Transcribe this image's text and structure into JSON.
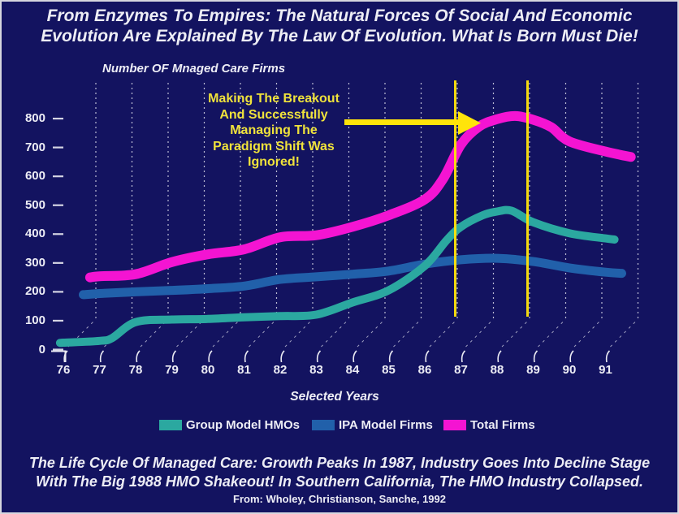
{
  "title": {
    "line1": "From Enzymes To Empires: The Natural Forces Of Social And Economic",
    "line2": "Evolution Are Explained By The Law Of Evolution. What Is Born Must Die!"
  },
  "chart": {
    "axis_title": "Number OF Mnaged Care Firms",
    "x_axis_label": "Selected Years",
    "annotation": {
      "lines": [
        "Making The Breakout",
        "And Successfully",
        "Managing The",
        "Paradigm Shift Was",
        "Ignored!"
      ]
    }
  },
  "chart_data": {
    "type": "line",
    "title": "Number OF Mnaged Care Firms",
    "xlabel": "Selected Years",
    "ylabel": "Number OF Mnaged Care Firms",
    "x_tick_labels": [
      "76",
      "77",
      "78",
      "79",
      "80",
      "81",
      "82",
      "83",
      "84",
      "85",
      "86",
      "87",
      "88",
      "89",
      "90",
      "91"
    ],
    "x_tick_years": [
      76,
      77,
      78,
      79,
      80,
      81,
      82,
      83,
      84,
      85,
      86,
      87,
      88,
      89,
      90,
      91
    ],
    "y_ticks": [
      800,
      700,
      600,
      500,
      400,
      300,
      200,
      100,
      0
    ],
    "ylim": [
      0,
      870
    ],
    "grid": "dotted-vertical-skewed",
    "legend_position": "bottom",
    "highlight_years": [
      87,
      89
    ],
    "series": [
      {
        "name": "IPA Model Firms",
        "color": "#2160aa",
        "stroke_width": 11,
        "points": [
          [
            76.55,
            190
          ],
          [
            77,
            194
          ],
          [
            78,
            200
          ],
          [
            79,
            205
          ],
          [
            80,
            211
          ],
          [
            81,
            220
          ],
          [
            82,
            243
          ],
          [
            83,
            252
          ],
          [
            84,
            261
          ],
          [
            85,
            272
          ],
          [
            86,
            296
          ],
          [
            87,
            311
          ],
          [
            88,
            316
          ],
          [
            89,
            305
          ],
          [
            90,
            283
          ],
          [
            91,
            268
          ],
          [
            91.45,
            264
          ]
        ]
      },
      {
        "name": "Group Model HMOs",
        "color": "#2ba8a0",
        "stroke_width": 10,
        "points": [
          [
            75.95,
            23
          ],
          [
            76,
            24
          ],
          [
            77,
            30
          ],
          [
            77.35,
            40
          ],
          [
            78,
            95
          ],
          [
            79,
            104
          ],
          [
            80,
            106
          ],
          [
            81,
            112
          ],
          [
            82,
            116
          ],
          [
            83,
            121
          ],
          [
            84,
            163
          ],
          [
            85,
            205
          ],
          [
            86,
            290
          ],
          [
            86.6,
            378
          ],
          [
            87,
            425
          ],
          [
            87.6,
            465
          ],
          [
            88,
            478
          ],
          [
            88.4,
            481
          ],
          [
            89,
            441
          ],
          [
            90,
            403
          ],
          [
            91,
            385
          ],
          [
            91.25,
            381
          ]
        ]
      },
      {
        "name": "Total Firms",
        "color": "#f414d2",
        "stroke_width": 12,
        "points": [
          [
            76.74,
            250
          ],
          [
            77,
            254
          ],
          [
            78,
            261
          ],
          [
            79,
            303
          ],
          [
            80,
            330
          ],
          [
            81,
            347
          ],
          [
            82,
            389
          ],
          [
            83,
            396
          ],
          [
            84,
            425
          ],
          [
            85,
            465
          ],
          [
            86,
            520
          ],
          [
            86.5,
            590
          ],
          [
            87,
            710
          ],
          [
            87.5,
            772
          ],
          [
            88,
            798
          ],
          [
            88.5,
            809
          ],
          [
            89,
            796
          ],
          [
            89.5,
            770
          ],
          [
            90,
            721
          ],
          [
            91,
            686
          ],
          [
            91.7,
            667
          ]
        ]
      }
    ]
  },
  "legend": [
    {
      "label": "Group Model HMOs",
      "color": "#2ba8a0"
    },
    {
      "label": "IPA Model Firms",
      "color": "#2160aa"
    },
    {
      "label": "Total Firms",
      "color": "#f414d2"
    }
  ],
  "footer": {
    "line1": "The Life Cycle Of Managed Care: Growth Peaks In 1987, Industry Goes Into Decline Stage",
    "line2": "With The Big 1988 HMO Shakeout! In Southern California, The HMO Industry Collapsed.",
    "attribution": "From: Wholey, Christianson, Sanche, 1992"
  },
  "colors": {
    "background": "#131360",
    "text_light": "#ededf5",
    "annotation_yellow": "#efe23b",
    "marker_yellow": "#ffe40a",
    "grid": "#dadae8",
    "teal": "#2ba8a0",
    "blue": "#2160aa",
    "magenta": "#f414d2"
  }
}
